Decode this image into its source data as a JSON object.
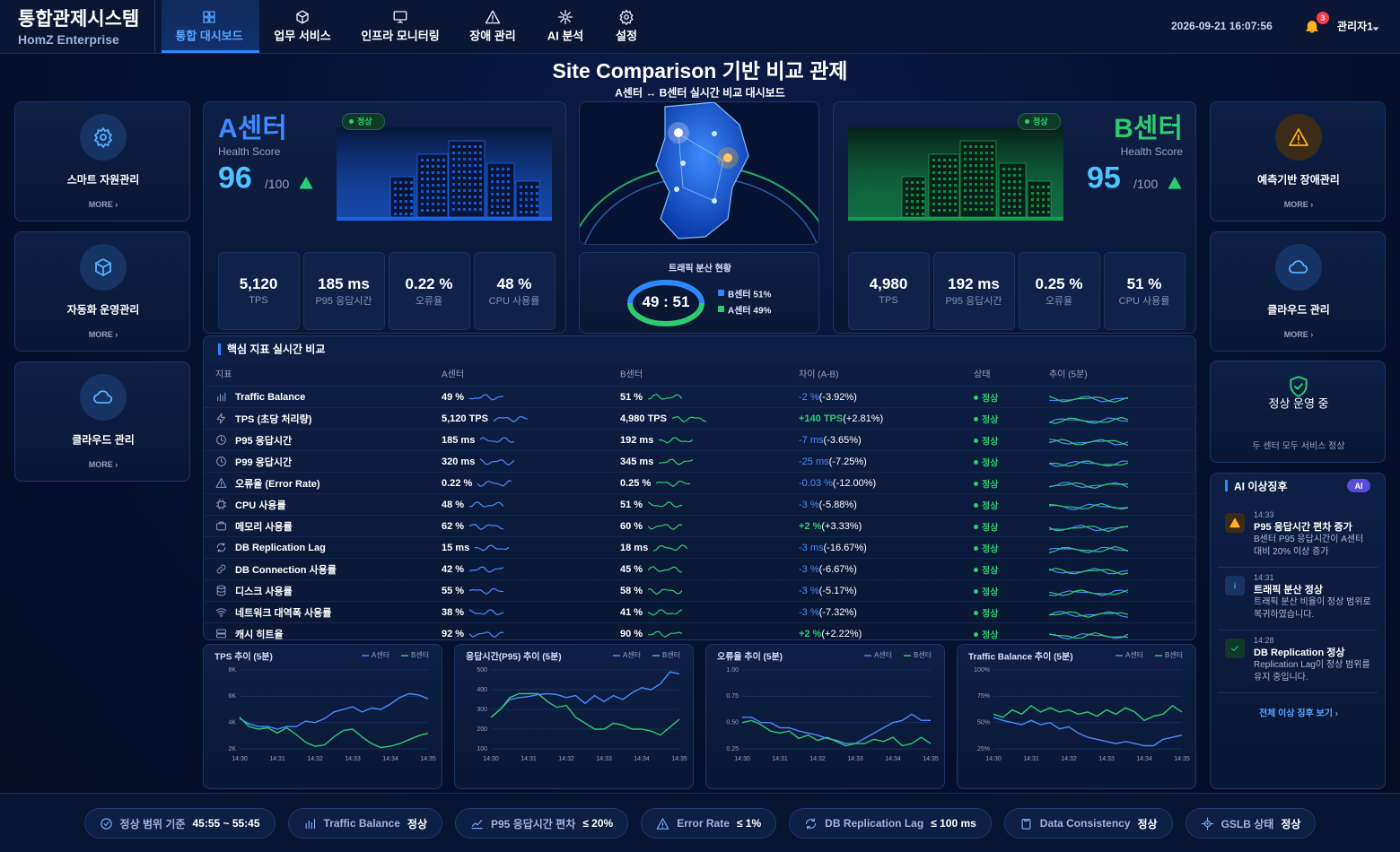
{
  "header": {
    "title": "통합관제시스템",
    "subtitle": "HomZ Enterprise",
    "nav": [
      "통합 대시보드",
      "업무 서비스",
      "인프라 모니터링",
      "장애 관리",
      "AI 분석",
      "설정"
    ],
    "datetime": "2026-09-21 16:07:56",
    "notifications": 3,
    "user": "관리자1"
  },
  "page": {
    "title": "Site Comparison 기반 비교 관제",
    "subtitle": "A센터 ↔ B센터 실시간 비교 대시보드"
  },
  "more_label": "MORE ›",
  "left_cards": [
    "스마트 자원관리",
    "자동화 운영관리",
    "클라우드 관리"
  ],
  "right_cards": [
    "예측기반 장애관리",
    "클라우드 관리"
  ],
  "status_card": {
    "title": "정상 운영 중",
    "desc": "두 센터 모두 서비스 정상"
  },
  "sites": [
    {
      "name": "A센터",
      "status": "정상",
      "health_label": "Health Score",
      "score": 96,
      "max": "/100",
      "metrics": [
        {
          "value": "5,120",
          "label": "TPS"
        },
        {
          "value": "185 ms",
          "label": "P95 응답시간"
        },
        {
          "value": "0.22 %",
          "label": "오류율"
        },
        {
          "value": "48 %",
          "label": "CPU 사용률"
        }
      ]
    },
    {
      "name": "B센터",
      "status": "정상",
      "health_label": "Health Score",
      "score": 95,
      "max": "/100",
      "metrics": [
        {
          "value": "4,980",
          "label": "TPS"
        },
        {
          "value": "192 ms",
          "label": "P95 응답시간"
        },
        {
          "value": "0.25 %",
          "label": "오류율"
        },
        {
          "value": "51 %",
          "label": "CPU 사용률"
        }
      ]
    }
  ],
  "traffic": {
    "title": "트래픽 분산 현황",
    "ratio": "49 : 51",
    "legend": [
      "B센터 51%",
      "A센터 49%"
    ]
  },
  "table": {
    "title": "핵심 지표 실시간 비교",
    "headers": [
      "지표",
      "A센터",
      "B센터",
      "차이 (A-B)",
      "상태",
      "추이 (5분)"
    ],
    "rows": [
      {
        "name": "Traffic Balance",
        "a": "49 %",
        "b": "51 %",
        "diff": "-2 %",
        "diff_pct": "(-3.92%)",
        "status": "정상"
      },
      {
        "name": "TPS (초당 처리량)",
        "a": "5,120 TPS",
        "b": "4,980 TPS",
        "diff": "+140 TPS",
        "diff_pct": "(+2.81%)",
        "status": "정상"
      },
      {
        "name": "P95 응답시간",
        "a": "185 ms",
        "b": "192 ms",
        "diff": "-7 ms",
        "diff_pct": "(-3.65%)",
        "status": "정상"
      },
      {
        "name": "P99 응답시간",
        "a": "320 ms",
        "b": "345 ms",
        "diff": "-25 ms",
        "diff_pct": "(-7.25%)",
        "status": "정상"
      },
      {
        "name": "오류율 (Error Rate)",
        "a": "0.22 %",
        "b": "0.25 %",
        "diff": "-0.03 %",
        "diff_pct": "(-12.00%)",
        "status": "정상"
      },
      {
        "name": "CPU 사용률",
        "a": "48 %",
        "b": "51 %",
        "diff": "-3 %",
        "diff_pct": "(-5.88%)",
        "status": "정상"
      },
      {
        "name": "메모리 사용률",
        "a": "62 %",
        "b": "60 %",
        "diff": "+2 %",
        "diff_pct": "(+3.33%)",
        "status": "정상"
      },
      {
        "name": "DB Replication Lag",
        "a": "15 ms",
        "b": "18 ms",
        "diff": "-3 ms",
        "diff_pct": "(-16.67%)",
        "status": "정상"
      },
      {
        "name": "DB Connection 사용률",
        "a": "42 %",
        "b": "45 %",
        "diff": "-3 %",
        "diff_pct": "(-6.67%)",
        "status": "정상"
      },
      {
        "name": "디스크 사용률",
        "a": "55 %",
        "b": "58 %",
        "diff": "-3 %",
        "diff_pct": "(-5.17%)",
        "status": "정상"
      },
      {
        "name": "네트워크 대역폭 사용률",
        "a": "38 %",
        "b": "41 %",
        "diff": "-3 %",
        "diff_pct": "(-7.32%)",
        "status": "정상"
      },
      {
        "name": "캐시 히트율",
        "a": "92 %",
        "b": "90 %",
        "diff": "+2 %",
        "diff_pct": "(+2.22%)",
        "status": "정상"
      }
    ]
  },
  "ai": {
    "title": "AI 이상징후",
    "badge": "AI",
    "items": [
      {
        "time": "14:33",
        "title": "P95 응답시간 편차 증가",
        "desc": "B센터 P95 응답시간이 A센터 대비 20% 이상 증가"
      },
      {
        "time": "14:31",
        "title": "트래픽 분산 정상",
        "desc": "트래픽 분산 비율이 정상 범위로 복귀하였습니다."
      },
      {
        "time": "14:28",
        "title": "DB Replication 정상",
        "desc": "Replication Lag이 정상 범위를 유지 중입니다."
      }
    ],
    "link": "전체 이상 징후 보기 ›"
  },
  "footer": [
    {
      "label": "정상 범위 기준",
      "value": "45:55 ~ 55:45"
    },
    {
      "label": "Traffic Balance",
      "value": "정상"
    },
    {
      "label": "P95 응답시간 편차",
      "value": "≤ 20%"
    },
    {
      "label": "Error Rate",
      "value": "≤ 1%"
    },
    {
      "label": "DB Replication Lag",
      "value": "≤ 100 ms"
    },
    {
      "label": "Data Consistency",
      "value": "정상"
    },
    {
      "label": "GSLB 상태",
      "value": "정상"
    }
  ],
  "chart_data": [
    {
      "type": "line",
      "title": "TPS 추이 (5분)",
      "categories": [
        "14:30",
        null,
        null,
        null,
        "14:31",
        null,
        null,
        null,
        "14:32",
        null,
        null,
        null,
        "14:33",
        null,
        null,
        null,
        "14:34",
        null,
        null,
        null,
        "14:35"
      ],
      "ylim": [
        2000,
        8000
      ],
      "yticks": [
        {
          "value": 2000,
          "label": "2K"
        },
        {
          "value": 4000,
          "label": "4K"
        },
        {
          "value": 6000,
          "label": "6K"
        },
        {
          "value": 8000,
          "label": "8K"
        }
      ],
      "grid": true,
      "series": [
        {
          "name": "A센터",
          "color": "#4a8cff",
          "values": [
            4300,
            3900,
            3700,
            3700,
            3500,
            3700,
            3700,
            4100,
            4000,
            4300,
            4800,
            5000,
            5200,
            4800,
            5100,
            5000,
            5400,
            5900,
            6200,
            6100,
            5800
          ]
        },
        {
          "name": "B센터",
          "color": "#2ecc71",
          "values": [
            4400,
            3700,
            3500,
            3600,
            3200,
            3600,
            3100,
            2500,
            2200,
            2300,
            2900,
            3400,
            3500,
            2900,
            2400,
            2100,
            2200,
            2400,
            2700,
            3000,
            3200
          ]
        }
      ]
    },
    {
      "type": "line",
      "title": "응답시간(P95) 추이 (5분)",
      "categories": [
        "14:30",
        null,
        null,
        null,
        "14:31",
        null,
        null,
        null,
        "14:32",
        null,
        null,
        null,
        "14:33",
        null,
        null,
        null,
        "14:34",
        null,
        null,
        null,
        "14:35"
      ],
      "ylim": [
        100,
        500
      ],
      "yticks": [
        100,
        200,
        300,
        400,
        500
      ],
      "grid": true,
      "series": [
        {
          "name": "A센터",
          "color": "#4a8cff",
          "values": [
            260,
            300,
            350,
            360,
            365,
            375,
            380,
            375,
            360,
            370,
            330,
            370,
            340,
            370,
            350,
            385,
            410,
            400,
            430,
            490,
            480
          ]
        },
        {
          "name": "B센터",
          "color": "#2ecc71",
          "values": [
            260,
            300,
            360,
            380,
            380,
            380,
            340,
            310,
            320,
            260,
            230,
            200,
            200,
            230,
            220,
            200,
            200,
            190,
            170,
            210,
            250
          ]
        }
      ]
    },
    {
      "type": "line",
      "title": "오류율 추이 (5분)",
      "categories": [
        "14:30",
        null,
        null,
        null,
        "14:31",
        null,
        null,
        null,
        "14:32",
        null,
        null,
        null,
        "14:33",
        null,
        null,
        null,
        "14:34",
        null,
        null,
        null,
        "14:35"
      ],
      "ylim": [
        0.25,
        1.0
      ],
      "yticks": [
        0.25,
        {
          "value": 0.5,
          "label": "0.50"
        },
        {
          "value": 0.75,
          "label": "0.75"
        },
        {
          "value": 1.0,
          "label": "1.00"
        }
      ],
      "grid": true,
      "series": [
        {
          "name": "A센터",
          "color": "#4a8cff",
          "values": [
            0.55,
            0.55,
            0.5,
            0.5,
            0.45,
            0.45,
            0.42,
            0.4,
            0.38,
            0.35,
            0.33,
            0.3,
            0.3,
            0.35,
            0.4,
            0.45,
            0.5,
            0.52,
            0.58,
            0.52,
            0.52
          ]
        },
        {
          "name": "B센터",
          "color": "#2ecc71",
          "values": [
            0.5,
            0.52,
            0.48,
            0.42,
            0.4,
            0.42,
            0.35,
            0.38,
            0.33,
            0.36,
            0.32,
            0.28,
            0.3,
            0.3,
            0.34,
            0.32,
            0.36,
            0.28,
            0.3,
            0.36,
            0.3
          ]
        }
      ]
    },
    {
      "type": "line",
      "title": "Traffic Balance 추이 (5분)",
      "categories": [
        "14:30",
        null,
        null,
        null,
        "14:31",
        null,
        null,
        null,
        "14:32",
        null,
        null,
        null,
        "14:33",
        null,
        null,
        null,
        "14:34",
        null,
        null,
        null,
        "14:35"
      ],
      "ylim": [
        25,
        100
      ],
      "yticks": [
        {
          "value": 25,
          "label": "25%"
        },
        {
          "value": 50,
          "label": "50%"
        },
        {
          "value": 75,
          "label": "75%"
        },
        {
          "value": 100,
          "label": "100%"
        }
      ],
      "grid": true,
      "series": [
        {
          "name": "A센터",
          "color": "#4a8cff",
          "values": [
            55,
            52,
            50,
            48,
            52,
            48,
            50,
            44,
            46,
            40,
            36,
            34,
            32,
            30,
            32,
            30,
            28,
            28,
            34,
            36,
            38
          ]
        },
        {
          "name": "B센터",
          "color": "#2ecc71",
          "values": [
            58,
            55,
            62,
            58,
            66,
            60,
            64,
            60,
            62,
            58,
            60,
            56,
            62,
            58,
            64,
            60,
            52,
            56,
            58,
            66,
            60
          ]
        }
      ]
    }
  ]
}
